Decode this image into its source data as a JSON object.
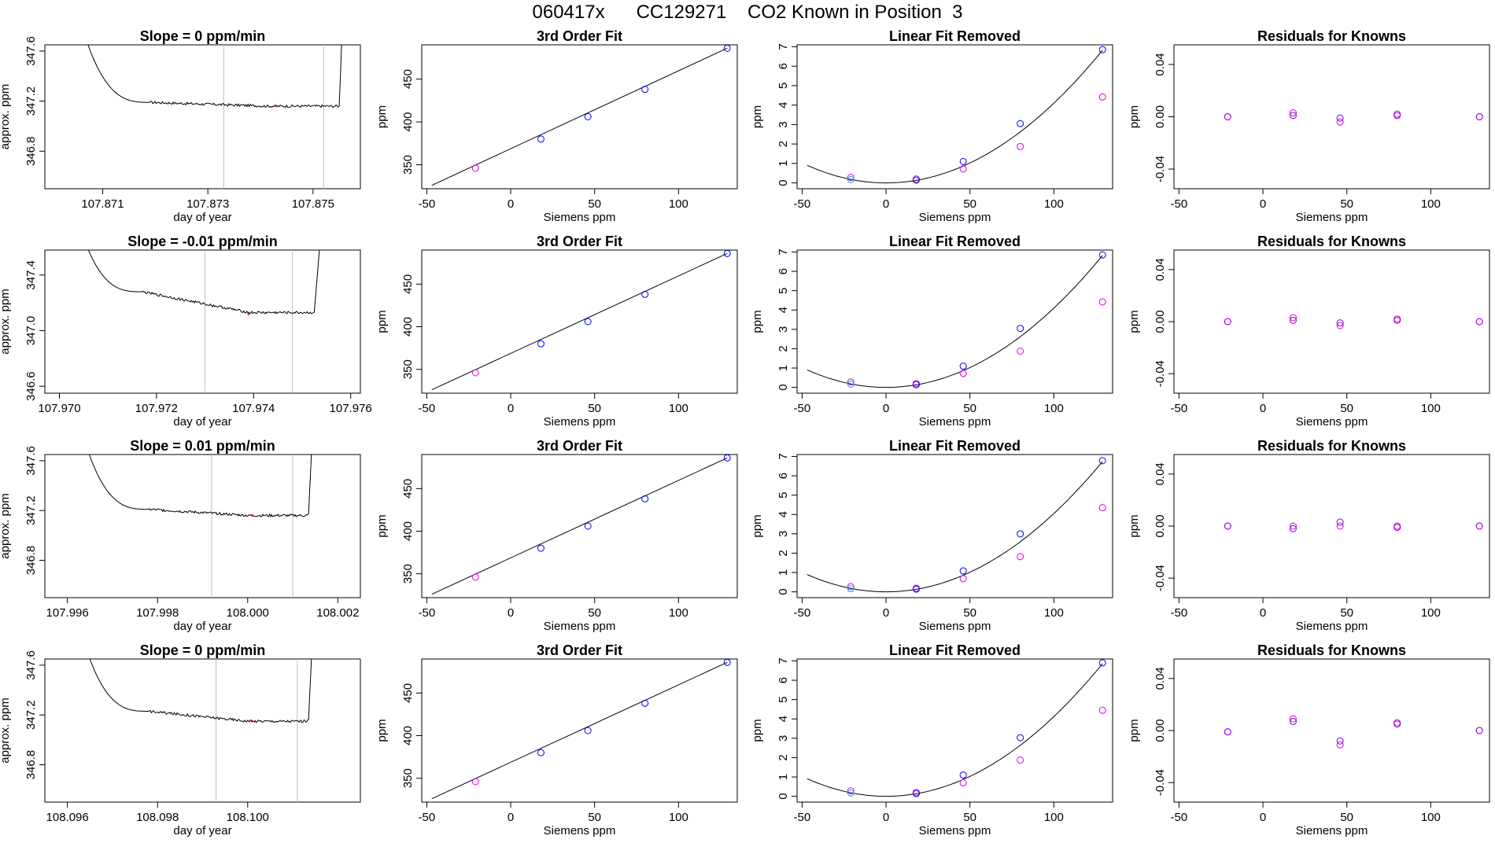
{
  "title": "060417x      CC129271    CO2 Known in Position  3",
  "colors": {
    "line": "#000000",
    "gridline": "#bebebe",
    "marker_red": "#ff0000",
    "point_blue": "#0000ff",
    "point_magenta": "#dd00dd",
    "point_cyan": "#00aaee",
    "point_purple": "#8800dd"
  },
  "chart_data": [
    {
      "type": "line",
      "panel": "time-series",
      "row": 0,
      "title": "Slope =  0  ppm/min",
      "xlabel": "day of year",
      "ylabel": "approx. ppm",
      "xlim": [
        107.8699,
        107.8759
      ],
      "ylim": [
        346.5,
        347.65
      ],
      "xticks": [
        107.871,
        107.873,
        107.875
      ],
      "xticklabels": [
        "107.871",
        "107.873",
        "107.875"
      ],
      "yticks": [
        346.8,
        347.2,
        347.6
      ],
      "yticklabels": [
        "346.8",
        "347.2",
        "347.6"
      ],
      "vlines": [
        107.8733,
        107.8752
      ],
      "x_start": 107.8703,
      "x_end": 107.8756,
      "x_flat_start": 107.8719,
      "x_rise": 107.8755,
      "y_plateau_start": 347.19,
      "y_plateau": 347.16,
      "marker": [
        107.8743,
        347.16
      ]
    },
    {
      "type": "line",
      "panel": "fit",
      "row": 0,
      "title": "3rd Order Fit",
      "xlabel": "Siemens ppm",
      "ylabel": "ppm",
      "xlim": [
        -53,
        135
      ],
      "ylim": [
        322,
        490
      ],
      "xticks": [
        -50,
        0,
        50,
        100
      ],
      "yticks": [
        350,
        400,
        450
      ],
      "line": [
        [
          -47,
          326
        ],
        [
          129,
          486
        ]
      ],
      "points_blue": [
        [
          18,
          380
        ],
        [
          46,
          406
        ],
        [
          80,
          438
        ],
        [
          129,
          486
        ]
      ],
      "points_magenta": [
        [
          -21,
          346
        ]
      ]
    },
    {
      "type": "scatter",
      "panel": "linear-fit-removed",
      "row": 0,
      "title": "Linear Fit Removed",
      "xlabel": "Siemens ppm",
      "ylabel": "ppm",
      "xlim": [
        -53,
        135
      ],
      "ylim": [
        -0.3,
        7.1
      ],
      "xticks": [
        -50,
        0,
        50,
        100
      ],
      "yticks": [
        0,
        1,
        2,
        3,
        4,
        5,
        6,
        7
      ],
      "curve_coef": 0.00041,
      "points_blue": [
        [
          18,
          0.14
        ],
        [
          46,
          1.1
        ],
        [
          80,
          3.05
        ],
        [
          129,
          6.85
        ]
      ],
      "points_magenta": [
        [
          -21,
          0.28
        ],
        [
          18,
          0.2
        ],
        [
          46,
          0.72
        ],
        [
          80,
          1.87
        ],
        [
          129,
          4.42
        ]
      ],
      "points_cyan": [
        [
          -21,
          0.17
        ]
      ]
    },
    {
      "type": "scatter",
      "panel": "residuals",
      "row": 0,
      "title": "Residuals for Knowns",
      "xlabel": "Siemens ppm",
      "ylabel": "ppm",
      "xlim": [
        -53,
        135
      ],
      "ylim": [
        -0.055,
        0.055
      ],
      "xticks": [
        -50,
        0,
        50,
        100
      ],
      "yticks": [
        -0.04,
        0.0,
        0.04
      ],
      "yticklabels": [
        "-0.04",
        "0.00",
        "0.04"
      ],
      "points_purple": [
        [
          -21,
          0.0
        ],
        [
          18,
          0.001
        ],
        [
          46,
          -0.001
        ],
        [
          80,
          0.001
        ],
        [
          129,
          0.0
        ]
      ],
      "points_magenta": [
        [
          -21,
          0.0
        ],
        [
          18,
          0.003
        ],
        [
          46,
          -0.004
        ],
        [
          80,
          0.002
        ],
        [
          129,
          0.0
        ]
      ]
    },
    {
      "type": "line",
      "panel": "time-series",
      "row": 1,
      "title": "Slope =  -0.01  ppm/min",
      "xlabel": "day of year",
      "ylabel": "approx. ppm",
      "xlim": [
        107.9697,
        107.9762
      ],
      "ylim": [
        346.55,
        347.58
      ],
      "xticks": [
        107.97,
        107.972,
        107.974,
        107.976
      ],
      "xticklabels": [
        "107.970",
        "107.972",
        "107.974",
        "107.976"
      ],
      "yticks": [
        346.6,
        347.0,
        347.4
      ],
      "yticklabels": [
        "346.6",
        "347.0",
        "347.4"
      ],
      "vlines": [
        107.973,
        107.9748
      ],
      "x_start": 107.9701,
      "x_end": 107.9755,
      "x_flat_start": 107.9717,
      "x_rise": 107.97525,
      "y_plateau_start": 347.28,
      "y_plateau": 347.13,
      "marker": [
        107.9739,
        347.12
      ]
    },
    {
      "type": "line",
      "panel": "fit",
      "row": 1,
      "title": "3rd Order Fit",
      "xlabel": "Siemens ppm",
      "ylabel": "ppm",
      "xlim": [
        -53,
        135
      ],
      "ylim": [
        322,
        490
      ],
      "xticks": [
        -50,
        0,
        50,
        100
      ],
      "yticks": [
        350,
        400,
        450
      ],
      "line": [
        [
          -47,
          326
        ],
        [
          129,
          486
        ]
      ],
      "points_blue": [
        [
          18,
          380
        ],
        [
          46,
          406
        ],
        [
          80,
          438
        ],
        [
          129,
          486
        ]
      ],
      "points_magenta": [
        [
          -21,
          346
        ]
      ]
    },
    {
      "type": "scatter",
      "panel": "linear-fit-removed",
      "row": 1,
      "title": "Linear Fit Removed",
      "xlabel": "Siemens ppm",
      "ylabel": "ppm",
      "xlim": [
        -53,
        135
      ],
      "ylim": [
        -0.3,
        7.1
      ],
      "xticks": [
        -50,
        0,
        50,
        100
      ],
      "yticks": [
        0,
        1,
        2,
        3,
        4,
        5,
        6,
        7
      ],
      "curve_coef": 0.00041,
      "points_blue": [
        [
          18,
          0.14
        ],
        [
          46,
          1.1
        ],
        [
          80,
          3.05
        ],
        [
          129,
          6.85
        ]
      ],
      "points_magenta": [
        [
          -21,
          0.28
        ],
        [
          18,
          0.2
        ],
        [
          46,
          0.72
        ],
        [
          80,
          1.87
        ],
        [
          129,
          4.42
        ]
      ],
      "points_cyan": [
        [
          -21,
          0.17
        ]
      ]
    },
    {
      "type": "scatter",
      "panel": "residuals",
      "row": 1,
      "title": "Residuals for Knowns",
      "xlabel": "Siemens ppm",
      "ylabel": "ppm",
      "xlim": [
        -53,
        135
      ],
      "ylim": [
        -0.055,
        0.055
      ],
      "xticks": [
        -50,
        0,
        50,
        100
      ],
      "yticks": [
        -0.04,
        0.0,
        0.04
      ],
      "yticklabels": [
        "-0.04",
        "0.00",
        "0.04"
      ],
      "points_purple": [
        [
          -21,
          0.0
        ],
        [
          18,
          0.001
        ],
        [
          46,
          -0.001
        ],
        [
          80,
          0.001
        ],
        [
          129,
          0.0
        ]
      ],
      "points_magenta": [
        [
          -21,
          0.0
        ],
        [
          18,
          0.003
        ],
        [
          46,
          -0.003
        ],
        [
          80,
          0.002
        ],
        [
          129,
          0.0
        ]
      ]
    },
    {
      "type": "line",
      "panel": "time-series",
      "row": 2,
      "title": "Slope =  0.01  ppm/min",
      "xlabel": "day of year",
      "ylabel": "approx. ppm",
      "xlim": [
        107.9955,
        108.0025
      ],
      "ylim": [
        346.5,
        347.65
      ],
      "xticks": [
        107.996,
        107.998,
        108.0,
        108.002
      ],
      "xticklabels": [
        "107.996",
        "107.998",
        "108.000",
        "108.002"
      ],
      "yticks": [
        346.8,
        347.2,
        347.6
      ],
      "yticklabels": [
        "346.8",
        "347.2",
        "347.6"
      ],
      "vlines": [
        107.9992,
        108.001
      ],
      "x_start": 107.996,
      "x_end": 108.0015,
      "x_flat_start": 107.9978,
      "x_rise": 108.00135,
      "y_plateau_start": 347.21,
      "y_plateau": 347.16,
      "marker": [
        108.0001,
        347.16
      ]
    },
    {
      "type": "line",
      "panel": "fit",
      "row": 2,
      "title": "3rd Order Fit",
      "xlabel": "Siemens ppm",
      "ylabel": "ppm",
      "xlim": [
        -53,
        135
      ],
      "ylim": [
        322,
        490
      ],
      "xticks": [
        -50,
        0,
        50,
        100
      ],
      "yticks": [
        350,
        400,
        450
      ],
      "line": [
        [
          -47,
          326
        ],
        [
          129,
          486
        ]
      ],
      "points_blue": [
        [
          18,
          380
        ],
        [
          46,
          406
        ],
        [
          80,
          438
        ],
        [
          129,
          486
        ]
      ],
      "points_magenta": [
        [
          -21,
          346
        ]
      ]
    },
    {
      "type": "scatter",
      "panel": "linear-fit-removed",
      "row": 2,
      "title": "Linear Fit Removed",
      "xlabel": "Siemens ppm",
      "ylabel": "ppm",
      "xlim": [
        -53,
        135
      ],
      "ylim": [
        -0.3,
        7.1
      ],
      "xticks": [
        -50,
        0,
        50,
        100
      ],
      "yticks": [
        0,
        1,
        2,
        3,
        4,
        5,
        6,
        7
      ],
      "curve_coef": 0.000405,
      "points_blue": [
        [
          18,
          0.14
        ],
        [
          46,
          1.08
        ],
        [
          80,
          3.0
        ],
        [
          129,
          6.78
        ]
      ],
      "points_magenta": [
        [
          -21,
          0.27
        ],
        [
          18,
          0.19
        ],
        [
          46,
          0.68
        ],
        [
          80,
          1.82
        ],
        [
          129,
          4.35
        ]
      ],
      "points_cyan": [
        [
          -21,
          0.16
        ]
      ]
    },
    {
      "type": "scatter",
      "panel": "residuals",
      "row": 2,
      "title": "Residuals for Knowns",
      "xlabel": "Siemens ppm",
      "ylabel": "ppm",
      "xlim": [
        -53,
        135
      ],
      "ylim": [
        -0.055,
        0.055
      ],
      "xticks": [
        -50,
        0,
        50,
        100
      ],
      "yticks": [
        -0.04,
        0.0,
        0.04
      ],
      "yticklabels": [
        "-0.04",
        "0.00",
        "0.04"
      ],
      "points_purple": [
        [
          -21,
          0.0
        ],
        [
          18,
          -0.002
        ],
        [
          46,
          0.003
        ],
        [
          80,
          -0.001
        ],
        [
          129,
          0.0
        ]
      ],
      "points_magenta": [
        [
          -21,
          0.0
        ],
        [
          18,
          0.0
        ],
        [
          46,
          0.0
        ],
        [
          80,
          0.0
        ],
        [
          129,
          0.0
        ]
      ]
    },
    {
      "type": "line",
      "panel": "time-series",
      "row": 3,
      "title": "Slope =  0  ppm/min",
      "xlabel": "day of year",
      "ylabel": "approx. ppm",
      "xlim": [
        108.0955,
        108.1025
      ],
      "ylim": [
        346.5,
        347.65
      ],
      "xticks": [
        108.096,
        108.098,
        108.1
      ],
      "xticklabels": [
        "108.096",
        "108.098",
        "108.100"
      ],
      "yticks": [
        346.8,
        347.2,
        347.6
      ],
      "yticklabels": [
        "346.8",
        "347.2",
        "347.6"
      ],
      "vlines": [
        108.0993,
        108.1011
      ],
      "x_start": 108.096,
      "x_end": 108.1015,
      "x_flat_start": 108.0978,
      "x_rise": 108.10135,
      "y_plateau_start": 347.23,
      "y_plateau": 347.15,
      "marker": [
        108.1001,
        347.15
      ]
    },
    {
      "type": "line",
      "panel": "fit",
      "row": 3,
      "title": "3rd Order Fit",
      "xlabel": "Siemens ppm",
      "ylabel": "ppm",
      "xlim": [
        -53,
        135
      ],
      "ylim": [
        322,
        490
      ],
      "xticks": [
        -50,
        0,
        50,
        100
      ],
      "yticks": [
        350,
        400,
        450
      ],
      "line": [
        [
          -47,
          326
        ],
        [
          129,
          486
        ]
      ],
      "points_blue": [
        [
          18,
          380
        ],
        [
          46,
          406
        ],
        [
          80,
          438
        ],
        [
          129,
          486
        ]
      ],
      "points_magenta": [
        [
          -21,
          346
        ]
      ]
    },
    {
      "type": "scatter",
      "panel": "linear-fit-removed",
      "row": 3,
      "title": "Linear Fit Removed",
      "xlabel": "Siemens ppm",
      "ylabel": "ppm",
      "xlim": [
        -53,
        135
      ],
      "ylim": [
        -0.3,
        7.1
      ],
      "xticks": [
        -50,
        0,
        50,
        100
      ],
      "yticks": [
        0,
        1,
        2,
        3,
        4,
        5,
        6,
        7
      ],
      "curve_coef": 0.000412,
      "points_blue": [
        [
          18,
          0.14
        ],
        [
          46,
          1.1
        ],
        [
          80,
          3.03
        ],
        [
          129,
          6.9
        ]
      ],
      "points_magenta": [
        [
          -21,
          0.28
        ],
        [
          18,
          0.2
        ],
        [
          46,
          0.7
        ],
        [
          80,
          1.87
        ],
        [
          129,
          4.45
        ]
      ],
      "points_cyan": [
        [
          -21,
          0.17
        ]
      ]
    },
    {
      "type": "scatter",
      "panel": "residuals",
      "row": 3,
      "title": "Residuals for Knowns",
      "xlabel": "Siemens ppm",
      "ylabel": "ppm",
      "xlim": [
        -53,
        135
      ],
      "ylim": [
        -0.055,
        0.055
      ],
      "xticks": [
        -50,
        0,
        50,
        100
      ],
      "yticks": [
        -0.04,
        0.0,
        0.04
      ],
      "yticklabels": [
        "-0.04",
        "0.00",
        "0.04"
      ],
      "points_purple": [
        [
          -21,
          -0.001
        ],
        [
          18,
          0.007
        ],
        [
          46,
          -0.008
        ],
        [
          80,
          0.005
        ],
        [
          129,
          0.0
        ]
      ],
      "points_magenta": [
        [
          -21,
          -0.001
        ],
        [
          18,
          0.009
        ],
        [
          46,
          -0.011
        ],
        [
          80,
          0.006
        ],
        [
          129,
          0.0
        ]
      ]
    }
  ]
}
